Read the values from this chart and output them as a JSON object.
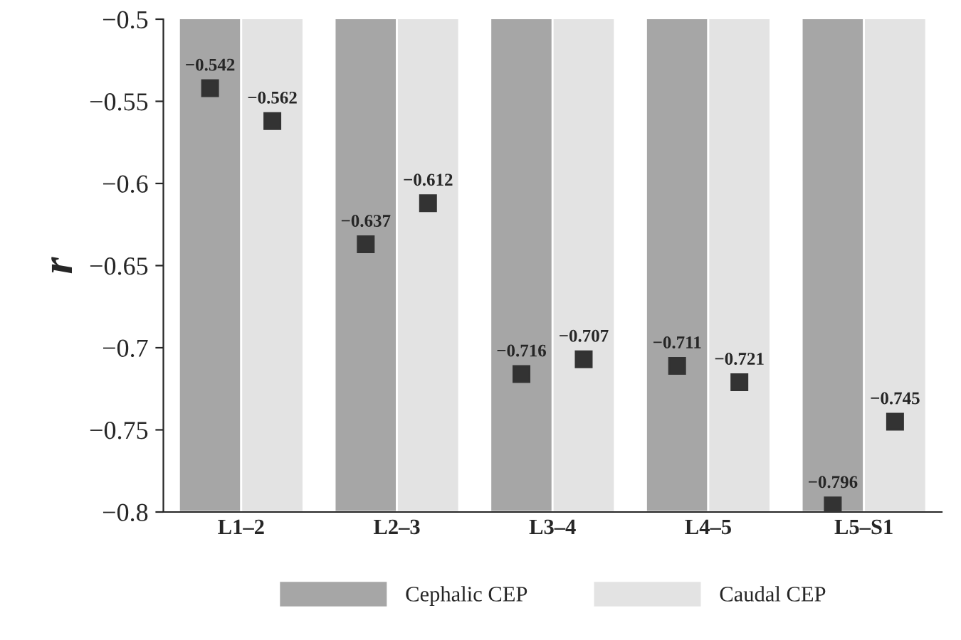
{
  "chart_data": {
    "type": "bar",
    "ylabel": "r",
    "categories": [
      "L1–2",
      "L2–3",
      "L3–4",
      "L4–5",
      "L5–S1"
    ],
    "ylim": [
      -0.8,
      -0.5
    ],
    "yticks": [
      -0.8,
      -0.75,
      -0.7,
      -0.65,
      -0.6,
      -0.55,
      -0.5
    ],
    "grid": false,
    "legend": "bottom",
    "series": [
      {
        "name": "Cephalic CEP",
        "color": "#a6a6a6",
        "values": [
          -0.8,
          -0.8,
          -0.8,
          -0.8,
          -0.8
        ]
      },
      {
        "name": "Caudal CEP",
        "color": "#e3e3e3",
        "values": [
          -0.8,
          -0.8,
          -0.8,
          -0.8,
          -0.8
        ]
      },
      {
        "type": "scatter",
        "marker": "square",
        "color": "#333333",
        "data_labels": true,
        "x": [
          "L1–2",
          "L2–3",
          "L3–4",
          "L4–5",
          "L5–S1"
        ],
        "values": [
          -0.542,
          -0.637,
          -0.716,
          -0.711,
          -0.796
        ]
      },
      {
        "type": "scatter",
        "marker": "square",
        "color": "#333333",
        "data_labels": true,
        "x": [
          "L1–2",
          "L2–3",
          "L3–4",
          "L4–5",
          "L5–S1"
        ],
        "values": [
          -0.562,
          -0.612,
          -0.707,
          -0.721,
          -0.745
        ]
      }
    ]
  }
}
